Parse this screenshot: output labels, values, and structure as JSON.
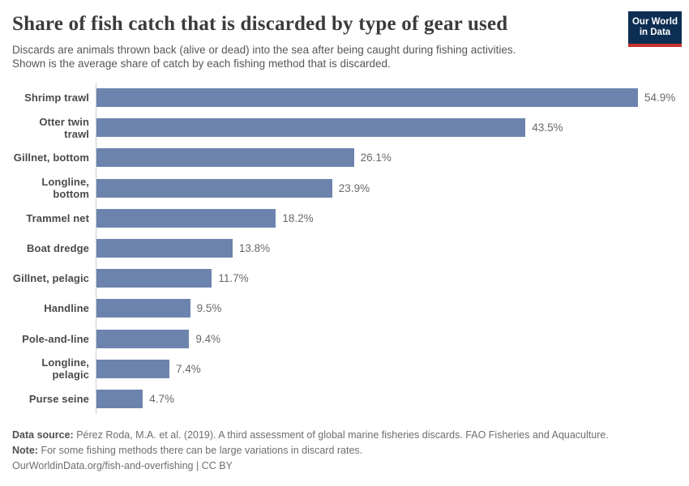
{
  "header": {
    "title": "Share of fish catch that is discarded by type of gear used",
    "subtitle_line1": "Discards are animals thrown back (alive or dead) into the sea after being caught during fishing activities.",
    "subtitle_line2": "Shown is the average share of catch by each fishing method that is discarded.",
    "logo": {
      "line1": "Our World",
      "line2": "in Data",
      "bg_color": "#0d2e53",
      "stripe_color": "#c7352c"
    }
  },
  "chart_data": {
    "type": "bar",
    "orientation": "horizontal",
    "categories": [
      "Shrimp trawl",
      "Otter twin trawl",
      "Gillnet, bottom",
      "Longline, bottom",
      "Trammel net",
      "Boat dredge",
      "Gillnet, pelagic",
      "Handline",
      "Pole-and-line",
      "Longline, pelagic",
      "Purse seine"
    ],
    "values": [
      54.9,
      43.5,
      26.1,
      23.9,
      18.2,
      13.8,
      11.7,
      9.5,
      9.4,
      7.4,
      4.7
    ],
    "value_labels": [
      "54.9%",
      "43.5%",
      "26.1%",
      "23.9%",
      "18.2%",
      "13.8%",
      "11.7%",
      "9.5%",
      "9.4%",
      "7.4%",
      "4.7%"
    ],
    "unit": "%",
    "bar_color": "#6c84ad",
    "axis_line_color": "#cccccc",
    "xlim": [
      0,
      54.9
    ],
    "grid": "off",
    "legend": "none",
    "title": "Share of fish catch that is discarded by type of gear used"
  },
  "footer": {
    "datasource_label": "Data source:",
    "datasource_text": "Pérez Roda, M.A. et al. (2019). A third assessment of global marine fisheries discards. FAO Fisheries and Aquaculture.",
    "note_label": "Note:",
    "note_text": "For some fishing methods there can be large variations in discard rates.",
    "citation": "OurWorldinData.org/fish-and-overfishing | CC BY"
  }
}
